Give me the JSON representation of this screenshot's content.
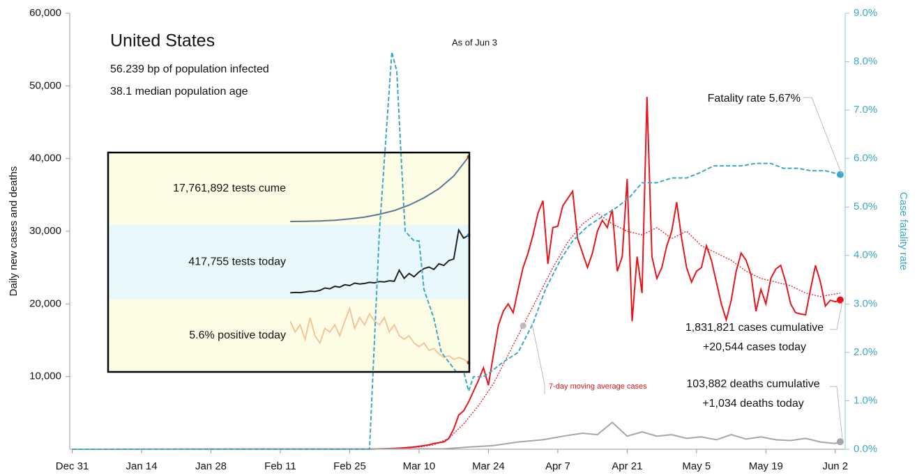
{
  "chart_data": {
    "type": "line",
    "title": "United States",
    "subtitle": [
      "56.239 bp of population infected",
      "38.1 median population age"
    ],
    "as_of": "As of Jun 3",
    "y_label": "Daily new cases and deaths",
    "y2_label": "Case fatality rate",
    "xlim": [
      -0.5,
      156
    ],
    "xticks": [
      {
        "value": 0,
        "label": "Dec 31"
      },
      {
        "value": 14,
        "label": "Jan 14"
      },
      {
        "value": 28,
        "label": "Jan 28"
      },
      {
        "value": 42,
        "label": "Feb 11"
      },
      {
        "value": 56,
        "label": "Feb 25"
      },
      {
        "value": 70,
        "label": "Mar 10"
      },
      {
        "value": 84,
        "label": "Mar 24"
      },
      {
        "value": 98,
        "label": "Apr 7"
      },
      {
        "value": 112,
        "label": "Apr 21"
      },
      {
        "value": 126,
        "label": "May 5"
      },
      {
        "value": 140,
        "label": "May 19"
      },
      {
        "value": 154,
        "label": "Jun 2"
      }
    ],
    "ylim": [
      0,
      60000
    ],
    "yticks": [
      {
        "value": 10000,
        "label": "10,000"
      },
      {
        "value": 20000,
        "label": "20,000"
      },
      {
        "value": 30000,
        "label": "30,000"
      },
      {
        "value": 40000,
        "label": "40,000"
      },
      {
        "value": 50000,
        "label": "50,000"
      },
      {
        "value": 60000,
        "label": "60,000"
      }
    ],
    "y2lim": [
      0,
      9
    ],
    "y2ticks": [
      {
        "value": 0,
        "label": "0.0%"
      },
      {
        "value": 1,
        "label": "1.0%"
      },
      {
        "value": 2,
        "label": "2.0%"
      },
      {
        "value": 3,
        "label": "3.0%"
      },
      {
        "value": 4,
        "label": "4.0%"
      },
      {
        "value": 5,
        "label": "5.0%"
      },
      {
        "value": 6,
        "label": "6.0%"
      },
      {
        "value": 7,
        "label": "7.0%"
      },
      {
        "value": 8,
        "label": "8.0%"
      },
      {
        "value": 9,
        "label": "9.0%"
      }
    ],
    "series": [
      {
        "color": "#e8141b",
        "style": "solid",
        "x": [
          0,
          60,
          61,
          62,
          63,
          64,
          65,
          66,
          67,
          68,
          69,
          70,
          71,
          72,
          73,
          74,
          75,
          76,
          77,
          78,
          79,
          80,
          81,
          82,
          83,
          84,
          85,
          86,
          87,
          88,
          89,
          90,
          91,
          92,
          93,
          94,
          95,
          96,
          97,
          98,
          99,
          100,
          101,
          102,
          103,
          104,
          105,
          106,
          107,
          108,
          109,
          110,
          111,
          112,
          113,
          114,
          115,
          116,
          117,
          118,
          119,
          120,
          121,
          122,
          123,
          124,
          125,
          126,
          127,
          128,
          129,
          130,
          131,
          132,
          133,
          134,
          135,
          136,
          137,
          138,
          139,
          140,
          141,
          142,
          143,
          144,
          145,
          146,
          147,
          148,
          149,
          150,
          151,
          152,
          153,
          154,
          155
        ],
        "values": [
          0,
          30,
          40,
          60,
          80,
          100,
          120,
          150,
          200,
          250,
          300,
          400,
          500,
          600,
          800,
          900,
          1000,
          1500,
          2800,
          4700,
          5300,
          6500,
          8000,
          9500,
          11200,
          8800,
          13000,
          17000,
          19000,
          20000,
          18800,
          22000,
          25000,
          27000,
          29500,
          32500,
          34200,
          25500,
          30500,
          30700,
          33500,
          34500,
          35500,
          29000,
          27000,
          25000,
          27000,
          30000,
          31500,
          30500,
          33000,
          24500,
          26500,
          37200,
          17600,
          26500,
          21500,
          48500,
          26500,
          23500,
          25000,
          28000,
          30000,
          34000,
          29000,
          25000,
          23000,
          24500,
          25000,
          28000,
          26000,
          23000,
          20000,
          17800,
          20500,
          24500,
          27000,
          26000,
          24000,
          19000,
          22000,
          20000,
          23500,
          24800,
          25300,
          23000,
          20000,
          18800,
          18600,
          18500,
          22000,
          25300,
          23000,
          19700,
          20500,
          20300,
          20544
        ]
      },
      {
        "color": "#e8141b",
        "style": "dotted",
        "x": [
          0,
          60,
          65,
          70,
          73,
          76,
          79,
          82,
          85,
          88,
          91,
          94,
          97,
          100,
          103,
          106,
          109,
          112,
          115,
          118,
          121,
          124,
          127,
          130,
          133,
          136,
          139,
          142,
          145,
          148,
          151,
          155
        ],
        "values": [
          0,
          0,
          100,
          300,
          600,
          1500,
          3500,
          6000,
          9000,
          13000,
          17000,
          21000,
          25000,
          28500,
          31000,
          32500,
          31000,
          30000,
          29500,
          30500,
          29000,
          30000,
          28000,
          27000,
          26000,
          24500,
          23500,
          23000,
          22500,
          21500,
          21000,
          21500
        ]
      },
      {
        "color": "#a6a6a6",
        "style": "solid",
        "x": [
          0,
          75,
          80,
          85,
          90,
          95,
          100,
          103,
          106,
          109,
          112,
          115,
          118,
          121,
          124,
          127,
          130,
          133,
          136,
          139,
          142,
          145,
          148,
          151,
          154,
          155
        ],
        "values": [
          0,
          50,
          300,
          500,
          1000,
          1300,
          1900,
          2200,
          2000,
          3700,
          1800,
          2400,
          1800,
          2000,
          1500,
          1700,
          1300,
          2000,
          1400,
          1700,
          1300,
          1200,
          1500,
          1000,
          800,
          1034
        ]
      },
      {
        "color": "#3aa9c6",
        "style": "dashed",
        "axis": "y2",
        "x": [
          0,
          60,
          62,
          64.5,
          65.5,
          66.5,
          67.2,
          69,
          70,
          71,
          73,
          74.5,
          76,
          77.5,
          79,
          80,
          81,
          83,
          84.5,
          87,
          90,
          93,
          95.5,
          98.5,
          101,
          104,
          107,
          110,
          112.5,
          115,
          118,
          121,
          124,
          126.5,
          129.5,
          132,
          135,
          138,
          141,
          143.5,
          146.5,
          149,
          152,
          155
        ],
        "values": [
          0,
          0,
          4.5,
          8.2,
          7.8,
          5.8,
          4.5,
          4.3,
          4.3,
          3.3,
          2.7,
          2.0,
          1.8,
          1.6,
          1.6,
          1.2,
          1.5,
          1.5,
          1.6,
          1.8,
          2.0,
          2.6,
          3.3,
          3.9,
          4.3,
          4.6,
          4.8,
          5.0,
          5.2,
          5.5,
          5.5,
          5.6,
          5.6,
          5.7,
          5.85,
          5.85,
          5.85,
          5.9,
          5.9,
          5.8,
          5.8,
          5.75,
          5.75,
          5.67
        ]
      }
    ],
    "annotations": {
      "fatality": "Fatality rate 5.67%",
      "cases": [
        "1,831,821 cases cumulative",
        "+20,544 cases today"
      ],
      "deaths": [
        "103,882 deaths cumulative",
        "+1,034 deaths today"
      ],
      "moving_average": "7-day moving average cases"
    },
    "inset": [
      {
        "label": "17,761,892 tests cume",
        "color": "#5a7599",
        "band": "#fdfde6",
        "ylim": [
          0,
          18000000
        ],
        "x": [
          44,
          47,
          50,
          53,
          56,
          59,
          62,
          65,
          68,
          71,
          74,
          77,
          80
        ],
        "values": [
          0,
          50000,
          150000,
          350000,
          700000,
          1200000,
          2000000,
          3000000,
          4500000,
          6500000,
          9000000,
          12500000,
          17761892
        ]
      },
      {
        "label": "417,755 tests today",
        "color": "#222222",
        "band": "#e8f8fc",
        "ylim": [
          40000,
          460000
        ],
        "x": [
          44,
          45,
          46,
          47,
          48,
          49,
          50,
          51,
          52,
          53,
          54,
          55,
          56,
          57,
          58,
          59,
          60,
          61,
          62,
          63,
          64,
          65,
          66,
          67,
          68,
          69,
          70,
          71,
          72,
          73,
          74,
          75,
          76,
          77,
          78,
          79,
          80
        ],
        "values": [
          60000,
          62000,
          61000,
          65000,
          70000,
          68000,
          75000,
          90000,
          85000,
          100000,
          95000,
          110000,
          105000,
          120000,
          115000,
          118000,
          125000,
          122000,
          130000,
          128000,
          135000,
          132000,
          200000,
          150000,
          180000,
          160000,
          190000,
          210000,
          220000,
          205000,
          240000,
          230000,
          260000,
          270000,
          450000,
          400000,
          417755
        ]
      },
      {
        "label": "5.6% positive today",
        "color": "#f6c49a",
        "band": "#fdfde6",
        "ylim": [
          4,
          22
        ],
        "x": [
          44,
          45,
          46,
          47,
          48,
          49,
          50,
          51,
          52,
          53,
          54,
          55,
          56,
          57,
          58,
          59,
          60,
          61,
          62,
          63,
          64,
          65,
          66,
          67,
          68,
          69,
          70,
          71,
          72,
          73,
          74,
          75,
          76,
          77,
          78,
          79,
          80
        ],
        "values": [
          17,
          14,
          16,
          12,
          18,
          13,
          11,
          15,
          14,
          16,
          13,
          17,
          20.5,
          15,
          18,
          16,
          19,
          17,
          16,
          18,
          14,
          16,
          13,
          12,
          13,
          11,
          10,
          11,
          9,
          9.5,
          8,
          7,
          7.5,
          6.5,
          7,
          6.5,
          5.6
        ]
      }
    ]
  }
}
